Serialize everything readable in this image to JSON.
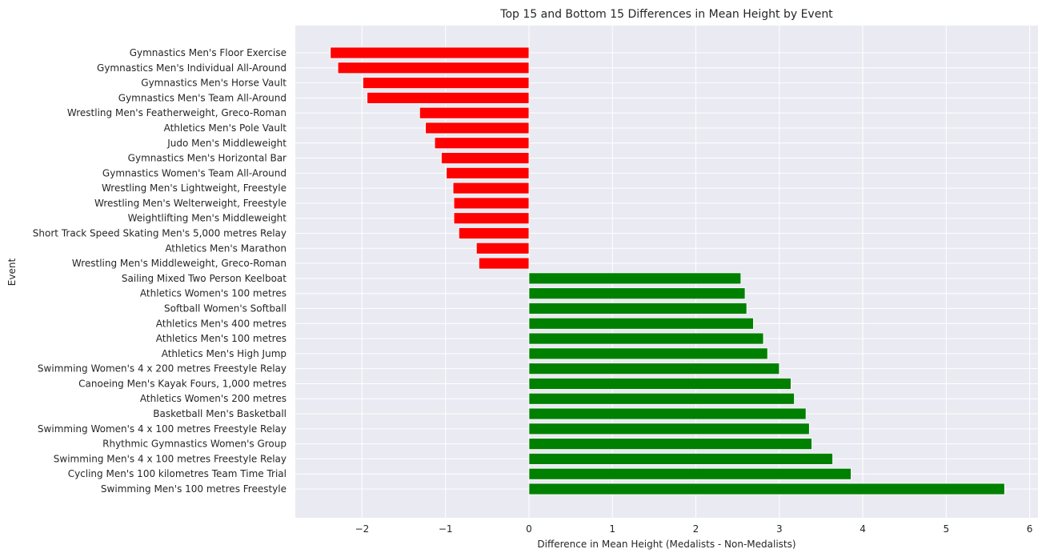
{
  "chart_data": {
    "type": "bar",
    "orientation": "horizontal",
    "title": "Top 15 and Bottom 15 Differences in Mean Height by Event",
    "xlabel": "Difference in Mean Height (Medalists - Non-Medalists)",
    "ylabel": "Event",
    "xlim": [
      -2.8,
      6.1
    ],
    "xticks": [
      -2,
      -1,
      0,
      1,
      2,
      3,
      4,
      5,
      6
    ],
    "xtick_labels": [
      "−2",
      "−1",
      "0",
      "1",
      "2",
      "3",
      "4",
      "5",
      "6"
    ],
    "grid": true,
    "legend": "none",
    "colors": {
      "positive": "#008000",
      "negative": "#ff0000",
      "background": "#eaeaf2",
      "grid": "#ffffff"
    },
    "categories": [
      "Gymnastics Men's Floor Exercise",
      "Gymnastics Men's Individual All-Around",
      "Gymnastics Men's Horse Vault",
      "Gymnastics Men's Team All-Around",
      "Wrestling Men's Featherweight, Greco-Roman",
      "Athletics Men's Pole Vault",
      "Judo Men's Middleweight",
      "Gymnastics Men's Horizontal Bar",
      "Gymnastics Women's Team All-Around",
      "Wrestling Men's Lightweight, Freestyle",
      "Wrestling Men's Welterweight, Freestyle",
      "Weightlifting Men's Middleweight",
      "Short Track Speed Skating Men's 5,000 metres Relay",
      "Athletics Men's Marathon",
      "Wrestling Men's Middleweight, Greco-Roman",
      "Sailing Mixed Two Person Keelboat",
      "Athletics Women's 100 metres",
      "Softball Women's Softball",
      "Athletics Men's 400 metres",
      "Athletics Men's 100 metres",
      "Athletics Men's High Jump",
      "Swimming Women's 4 x 200 metres Freestyle Relay",
      "Canoeing Men's Kayak Fours, 1,000 metres",
      "Athletics Women's 200 metres",
      "Basketball Men's Basketball",
      "Swimming Women's 4 x 100 metres Freestyle Relay",
      "Rhythmic Gymnastics Women's Group",
      "Swimming Men's 4 x 100 metres Freestyle Relay",
      "Cycling Men's 100 kilometres Team Time Trial",
      "Swimming Men's 100 metres Freestyle"
    ],
    "values": [
      -2.38,
      -2.29,
      -1.99,
      -1.94,
      -1.31,
      -1.24,
      -1.13,
      -1.05,
      -0.99,
      -0.91,
      -0.9,
      -0.9,
      -0.84,
      -0.63,
      -0.6,
      2.54,
      2.59,
      2.61,
      2.69,
      2.81,
      2.86,
      3.0,
      3.14,
      3.18,
      3.32,
      3.36,
      3.39,
      3.64,
      3.86,
      5.7
    ]
  }
}
